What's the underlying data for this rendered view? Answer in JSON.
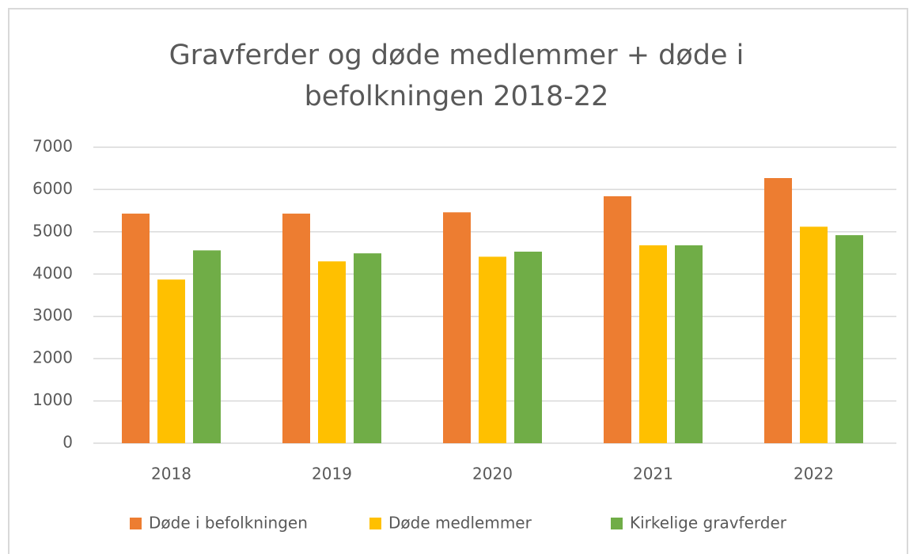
{
  "chart_data": {
    "type": "bar",
    "title": "Gravferder og døde medlemmer + døde i befolkningen 2018-22",
    "categories": [
      "2018",
      "2019",
      "2020",
      "2021",
      "2022"
    ],
    "series": [
      {
        "name": "Døde i befolkningen",
        "color": "#ed7d31",
        "values": [
          5430,
          5430,
          5460,
          5840,
          6270
        ]
      },
      {
        "name": "Døde medlemmer",
        "color": "#ffc000",
        "values": [
          3870,
          4300,
          4410,
          4680,
          5120
        ]
      },
      {
        "name": "Kirkelige gravferder",
        "color": "#70ad47",
        "values": [
          4560,
          4490,
          4530,
          4680,
          4920
        ]
      }
    ],
    "ylim": [
      0,
      7000
    ],
    "yticks": [
      0,
      1000,
      2000,
      3000,
      4000,
      5000,
      6000,
      7000
    ],
    "grid": true,
    "legend": "bottom"
  }
}
